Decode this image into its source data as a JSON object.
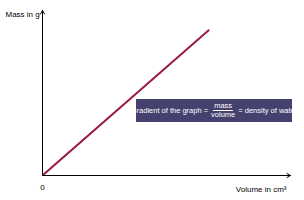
{
  "chart_data": {
    "type": "line",
    "x_label": "Volume in cm³",
    "y_label": "Mass in g",
    "x": [
      0,
      6.7
    ],
    "values": [
      0,
      8.8
    ],
    "color": "#9b1b4f",
    "xlim": [
      0,
      10
    ],
    "ylim": [
      0,
      10
    ],
    "xticks": [
      0
    ],
    "yticks": [],
    "tick_labels": "x",
    "annotation": {
      "text": "Gradient of the graph =",
      "numerator": "mass",
      "denominator": "volume",
      "text_after": "= density of water",
      "color": "#45416f"
    }
  }
}
